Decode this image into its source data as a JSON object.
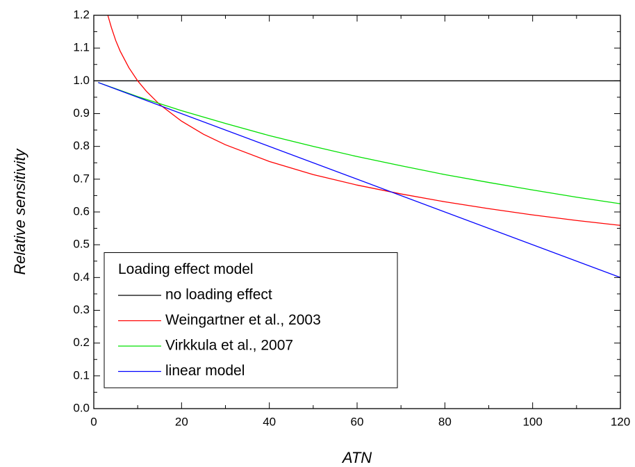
{
  "chart_data": {
    "type": "line",
    "xlabel": "ATN",
    "ylabel": "Relative sensitivity",
    "xlim": [
      0,
      120
    ],
    "xticks": [
      0,
      20,
      40,
      60,
      80,
      100,
      120
    ],
    "ylim": [
      0,
      1.2
    ],
    "yticks": [
      {
        "value": 0,
        "label": "0.0"
      },
      0.1,
      0.2,
      0.3,
      0.4,
      0.5,
      0.6,
      0.7,
      0.8,
      0.9,
      {
        "value": 1,
        "label": "1.0"
      },
      1.1,
      1.2
    ],
    "legend_title": "Loading effect model",
    "legend": "lower left",
    "series": [
      {
        "name": "no loading effect",
        "color": "#000000",
        "x": [
          0,
          120
        ],
        "values": [
          1.0,
          1.0
        ]
      },
      {
        "name": "Weingartner et al., 2003",
        "color": "#ff0000",
        "x": [
          3.2,
          4,
          5,
          6,
          8,
          10,
          12,
          15,
          20,
          25,
          30,
          40,
          50,
          60,
          70,
          80,
          90,
          100,
          110,
          120
        ],
        "values": [
          1.2,
          1.163,
          1.123,
          1.091,
          1.04,
          1.0,
          0.968,
          0.928,
          0.877,
          0.837,
          0.805,
          0.754,
          0.714,
          0.682,
          0.655,
          0.631,
          0.61,
          0.591,
          0.574,
          0.559
        ]
      },
      {
        "name": "Virkkula et al., 2007",
        "color": "#00e000",
        "x": [
          1,
          10,
          20,
          30,
          40,
          50,
          60,
          70,
          80,
          90,
          100,
          110,
          120
        ],
        "values": [
          0.995,
          0.952,
          0.909,
          0.87,
          0.833,
          0.8,
          0.769,
          0.741,
          0.714,
          0.69,
          0.667,
          0.645,
          0.625
        ]
      },
      {
        "name": "linear model",
        "color": "#0000ff",
        "x": [
          1,
          120
        ],
        "values": [
          0.995,
          0.4
        ]
      }
    ]
  }
}
